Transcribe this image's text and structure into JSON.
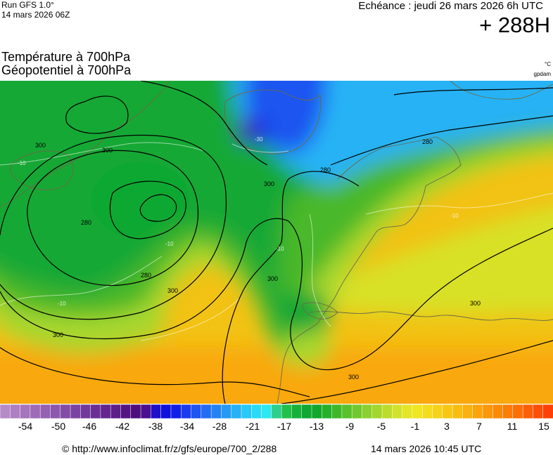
{
  "header": {
    "run_line1": "Run GFS 1.0°",
    "run_line2": "14 mars 2026 06Z",
    "valid_time": "Echéance : jeudi 26 mars 2026 6h UTC",
    "lead_time": "+ 288H"
  },
  "titles": {
    "temperature": "Température à 700hPa",
    "geopotential": "Géopotentiel à 700hPa"
  },
  "units": {
    "temperature": "°C",
    "geopotential": "gpdam"
  },
  "contour_labels": [
    "300",
    "300",
    "280",
    "280",
    "300",
    "300",
    "300",
    "300",
    "300",
    "280",
    "280",
    "300"
  ],
  "isotherm_labels": [
    "-10",
    "-10",
    "-10",
    "-10",
    "-30",
    "-10"
  ],
  "color_scale": {
    "colors": [
      "#b58ac7",
      "#ae7fc2",
      "#a675bd",
      "#9e6bb8",
      "#9561b2",
      "#8c57ad",
      "#834da7",
      "#7a43a1",
      "#71399b",
      "#6a2f95",
      "#63268f",
      "#5c1e89",
      "#551683",
      "#4e0f7d",
      "#4a1090",
      "#1e10c8",
      "#1010dd",
      "#1020e8",
      "#1a3cee",
      "#1f55f0",
      "#216cf2",
      "#2383f3",
      "#259af4",
      "#27b2f5",
      "#29c8f6",
      "#2bdbf5",
      "#2de8f0",
      "#2ecf8a",
      "#22c04a",
      "#16b13a",
      "#0ea832",
      "#10a82c",
      "#26b02a",
      "#3eb82a",
      "#58c12c",
      "#70c92e",
      "#8ad02e",
      "#a4d72e",
      "#bcdc2c",
      "#d2e22a",
      "#e4e626",
      "#f0e622",
      "#f4dc1e",
      "#f6d21a",
      "#f8c716",
      "#f9bc12",
      "#fab00e",
      "#fba40c",
      "#fb970a",
      "#fc8a08",
      "#fc7c08",
      "#fd6d08",
      "#fd5e08",
      "#fd4f08",
      "#fe4008"
    ],
    "tick_labels": [
      "-54",
      "-50",
      "-46",
      "-42",
      "-38",
      "-34",
      "-28",
      "-21",
      "-17",
      "-13",
      "-9",
      "-5",
      "-1",
      "3",
      "7",
      "11",
      "15"
    ]
  },
  "footer": {
    "copyright": "© http://www.infoclimat.fr/z/gfs/europe/700_2/288",
    "generated": "14 mars 2026 10:45 UTC"
  }
}
